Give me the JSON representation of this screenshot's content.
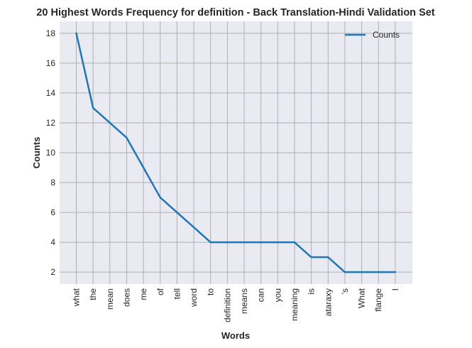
{
  "chart_data": {
    "type": "line",
    "title": "20 Highest Words Frequency for definition - Back Translation-Hindi Validation Set",
    "xlabel": "Words",
    "ylabel": "Counts",
    "categories": [
      "what",
      "the",
      "mean",
      "does",
      "me",
      "of",
      "tell",
      "word",
      "to",
      "definition",
      "means",
      "can",
      "you",
      "meaning",
      "is",
      "ataraxy",
      "'s",
      "What",
      "flange",
      "I"
    ],
    "series": [
      {
        "name": "Counts",
        "values": [
          18,
          13,
          12,
          11,
          9,
          7,
          6,
          5,
          4,
          4,
          4,
          4,
          4,
          4,
          3,
          3,
          2,
          2,
          2,
          2
        ],
        "color": "#1f77b4"
      }
    ],
    "yticks": [
      2,
      4,
      6,
      8,
      10,
      12,
      14,
      16,
      18
    ],
    "ylim": [
      1.2,
      18.8
    ],
    "grid": true,
    "legend_position": "top-right",
    "colors": {
      "plot_background": "#eaeaf2",
      "grid": "#b0b0b0"
    }
  }
}
